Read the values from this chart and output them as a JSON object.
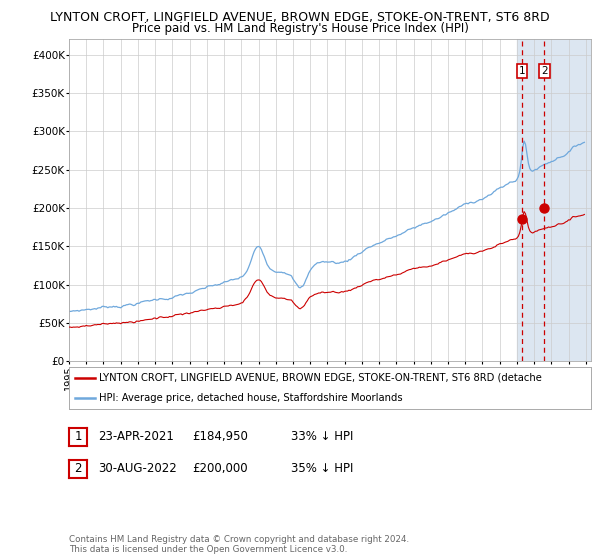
{
  "title1": "LYNTON CROFT, LINGFIELD AVENUE, BROWN EDGE, STOKE-ON-TRENT, ST6 8RD",
  "title2": "Price paid vs. HM Land Registry's House Price Index (HPI)",
  "legend_line1": "LYNTON CROFT, LINGFIELD AVENUE, BROWN EDGE, STOKE-ON-TRENT, ST6 8RD (detache",
  "legend_line2": "HPI: Average price, detached house, Staffordshire Moorlands",
  "sale1_date": "23-APR-2021",
  "sale1_price": 184950,
  "sale1_pct": "33% ↓ HPI",
  "sale2_date": "30-AUG-2022",
  "sale2_price": 200000,
  "sale2_pct": "35% ↓ HPI",
  "footer": "Contains HM Land Registry data © Crown copyright and database right 2024.\nThis data is licensed under the Open Government Licence v3.0.",
  "hpi_color": "#6fa8dc",
  "price_color": "#cc0000",
  "sale_marker_color": "#cc0000",
  "highlight_color": "#dce6f1",
  "dashed_line_color": "#cc0000",
  "grid_color": "#cccccc",
  "background_color": "#ffffff",
  "ylim": [
    0,
    420000
  ],
  "yticks": [
    0,
    50000,
    100000,
    150000,
    200000,
    250000,
    300000,
    350000,
    400000
  ],
  "ytick_labels": [
    "£0",
    "£50K",
    "£100K",
    "£150K",
    "£200K",
    "£250K",
    "£300K",
    "£350K",
    "£400K"
  ],
  "sale1_x": 2021.292,
  "sale2_x": 2022.583,
  "title_fontsize": 9,
  "subtitle_fontsize": 8.5,
  "tick_fontsize": 7.5,
  "legend_fontsize": 7.5,
  "annotation_fontsize": 8.5
}
